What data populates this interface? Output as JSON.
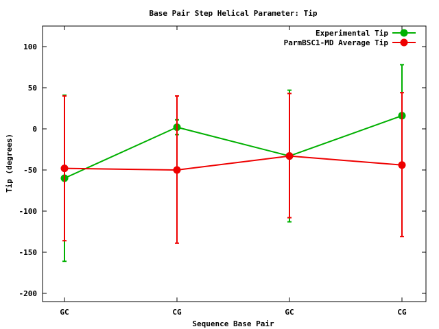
{
  "chart_data": {
    "type": "line",
    "title": "Base Pair Step Helical Parameter: Tip",
    "xlabel": "Sequence Base Pair",
    "ylabel": "Tip (degrees)",
    "categories": [
      "GC",
      "CG",
      "GC",
      "CG"
    ],
    "ylim": [
      -210,
      125
    ],
    "yticks": [
      100,
      50,
      0,
      -50,
      -100,
      -150,
      -200
    ],
    "ytick_labels": [
      "100",
      "50",
      "0",
      "-50",
      "-100",
      "-150",
      "-200"
    ],
    "grid": false,
    "legend_position": "top-right",
    "series": [
      {
        "name": "Experimental Tip",
        "color": "#00b000",
        "values": [
          -60,
          2,
          -33,
          16
        ],
        "err_low": [
          -161,
          -7,
          -113,
          -45
        ],
        "err_high": [
          41,
          11,
          47,
          78
        ]
      },
      {
        "name": "ParmBSC1-MD Average Tip",
        "color": "#ee0000",
        "values": [
          -48,
          -50,
          -33,
          -44
        ],
        "err_low": [
          -136,
          -139,
          -108,
          -131
        ],
        "err_high": [
          40,
          40,
          43,
          44
        ]
      }
    ]
  }
}
